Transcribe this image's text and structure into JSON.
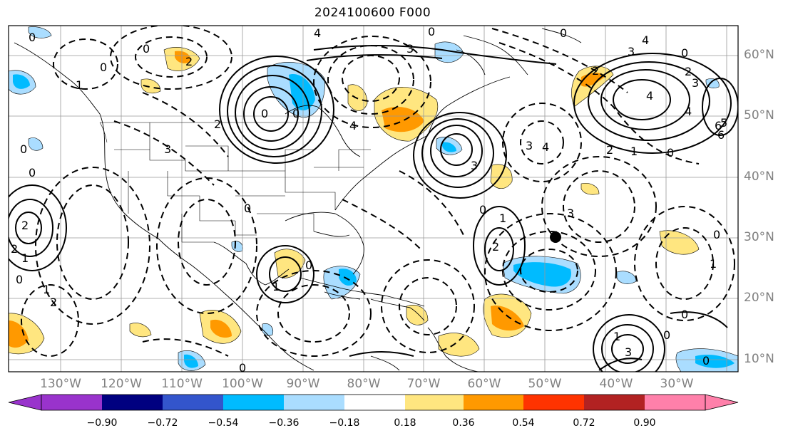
{
  "title": "2024100600 F000",
  "lat_labels": [
    "60°N",
    "50°N",
    "40°N",
    "30°N",
    "20°N",
    "10°N"
  ],
  "lon_labels": [
    "130°W",
    "120°W",
    "110°W",
    "100°W",
    "90°W",
    "80°W",
    "70°W",
    "60°W",
    "50°W",
    "40°W",
    "30°W"
  ],
  "colorbar": {
    "tick_labels": [
      "−0.90",
      "−0.72",
      "−0.54",
      "−0.36",
      "−0.18",
      "0.18",
      "0.36",
      "0.54",
      "0.72",
      "0.90"
    ],
    "colors": [
      "#9933cc",
      "#000080",
      "#3355cc",
      "#00bbff",
      "#aaddff",
      "#ffffff",
      "#ffe680",
      "#ff9900",
      "#ff3300",
      "#b22222",
      "#ff80aa"
    ]
  },
  "contour_labels": [
    "0",
    "1",
    "2",
    "3",
    "4",
    "5",
    "6"
  ]
}
